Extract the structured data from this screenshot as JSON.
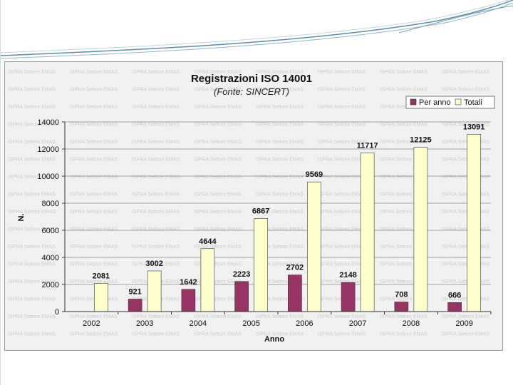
{
  "chart_data": {
    "type": "bar",
    "title": "Registrazioni ISO 14001",
    "subtitle": "(Fonte: SINCERT)",
    "xlabel": "Anno",
    "ylabel": "N.",
    "categories": [
      "2002",
      "2003",
      "2004",
      "2005",
      "2006",
      "2007",
      "2008",
      "2009"
    ],
    "series": [
      {
        "name": "Per anno",
        "color": "#993366",
        "values": [
          null,
          921,
          1642,
          2223,
          2702,
          2148,
          708,
          666
        ]
      },
      {
        "name": "Totali",
        "color": "#ffffcc",
        "values": [
          2081,
          3002,
          4644,
          6867,
          9569,
          11717,
          12125,
          13091
        ]
      }
    ],
    "ylim": [
      0,
      14000
    ],
    "yticks": [
      "0",
      "2000",
      "4000",
      "6000",
      "8000",
      "10000",
      "12000",
      "14000"
    ],
    "grid": true,
    "legend": "top-right",
    "watermark": "ISPRA Settore EMAS"
  }
}
